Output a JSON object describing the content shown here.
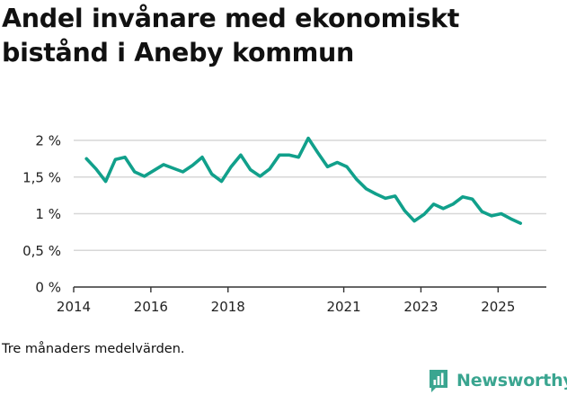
{
  "header": {
    "title_line1": "Andel invånare med ekonomiskt",
    "title_line2": "bistånd i Aneby kommun"
  },
  "footer": {
    "caption": "Tre månaders medelvärden.",
    "brand": "Newsworthy"
  },
  "colors": {
    "line": "#11a08b",
    "grid": "#d7d7d7",
    "axis": "#333333",
    "brand": "#3aa590"
  },
  "chart_data": {
    "type": "line",
    "title": "Andel invånare med ekonomiskt bistånd i Aneby kommun",
    "xlabel": "",
    "ylabel": "",
    "ylim": [
      0,
      2.0
    ],
    "xlim": [
      2014.0,
      2026.25
    ],
    "grid": true,
    "y_ticks": [
      {
        "value": 0,
        "label": "0 %"
      },
      {
        "value": 0.5,
        "label": "0,5 %"
      },
      {
        "value": 1.0,
        "label": "1 %"
      },
      {
        "value": 1.5,
        "label": "1,5 %"
      },
      {
        "value": 2.0,
        "label": "2 %"
      }
    ],
    "x_ticks": [
      {
        "value": 2014.0,
        "label": "2014"
      },
      {
        "value": 2016.0,
        "label": "2016"
      },
      {
        "value": 2018.0,
        "label": "2018"
      },
      {
        "value": 2021.0,
        "label": "2021"
      },
      {
        "value": 2023.0,
        "label": "2023"
      },
      {
        "value": 2025.0,
        "label": "2025"
      }
    ],
    "series": [
      {
        "name": "Andel invånare med ekonomiskt bistånd",
        "x": [
          2014.33,
          2014.58,
          2014.83,
          2015.08,
          2015.33,
          2015.58,
          2015.83,
          2016.08,
          2016.33,
          2016.58,
          2016.83,
          2017.08,
          2017.33,
          2017.58,
          2017.83,
          2018.08,
          2018.33,
          2018.58,
          2018.83,
          2019.08,
          2019.33,
          2019.58,
          2019.83,
          2020.08,
          2020.33,
          2020.58,
          2020.83,
          2021.08,
          2021.33,
          2021.58,
          2021.83,
          2022.08,
          2022.33,
          2022.58,
          2022.83,
          2023.08,
          2023.33,
          2023.58,
          2023.83,
          2024.08,
          2024.33,
          2024.58,
          2024.83,
          2025.08,
          2025.33,
          2025.58
        ],
        "values": [
          1.75,
          1.61,
          1.44,
          1.74,
          1.77,
          1.57,
          1.51,
          1.59,
          1.67,
          1.62,
          1.57,
          1.66,
          1.77,
          1.54,
          1.44,
          1.64,
          1.8,
          1.6,
          1.51,
          1.61,
          1.8,
          1.8,
          1.77,
          2.03,
          1.83,
          1.64,
          1.7,
          1.64,
          1.47,
          1.34,
          1.27,
          1.21,
          1.24,
          1.04,
          0.9,
          0.99,
          1.13,
          1.07,
          1.13,
          1.23,
          1.2,
          1.03,
          0.97,
          1.0,
          0.93,
          0.87
        ]
      }
    ]
  }
}
